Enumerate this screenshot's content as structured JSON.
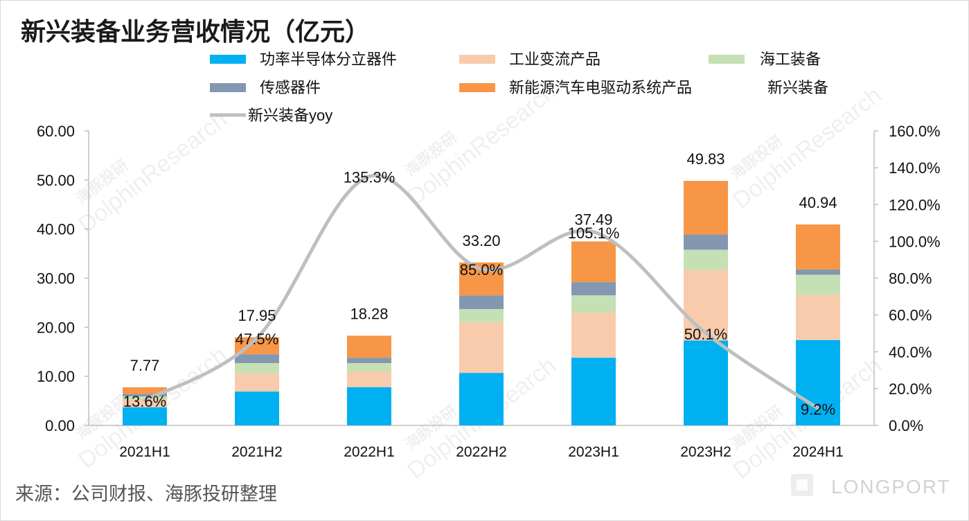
{
  "title": "新兴装备业务营收情况（亿元）",
  "source": "来源：公司财报、海豚投研整理",
  "watermark": {
    "cn": "海豚投研",
    "en": "DolphinResearch",
    "brand": "LONGPORT"
  },
  "colors": {
    "axis": "#BFBFBF",
    "line": "#BFBFBF",
    "frame": "#D9D9D9"
  },
  "chart_data": {
    "type": "bar",
    "stacked": true,
    "legend_position": "top",
    "grid": false,
    "categories": [
      "2021H1",
      "2021H2",
      "2022H1",
      "2022H2",
      "2023H1",
      "2023H2",
      "2024H1"
    ],
    "series": [
      {
        "name": "功率半导体分立器件",
        "color": "#00B0F0",
        "values": [
          3.7,
          6.9,
          7.8,
          10.7,
          13.8,
          17.3,
          17.4
        ]
      },
      {
        "name": "工业变流产品",
        "color": "#F8CBAD",
        "values": [
          1.6,
          3.7,
          3.2,
          10.3,
          9.2,
          14.4,
          9.2
        ]
      },
      {
        "name": "海工装备",
        "color": "#C5E0B4",
        "values": [
          0.6,
          2.1,
          1.7,
          2.7,
          3.5,
          4.1,
          4.1
        ]
      },
      {
        "name": "传感器件",
        "color": "#8497B0",
        "values": [
          0.5,
          1.8,
          1.1,
          2.8,
          2.7,
          3.1,
          1.1
        ]
      },
      {
        "name": "新能源汽车电驱动系统产品",
        "color": "#F79646",
        "values": [
          1.37,
          3.45,
          4.48,
          6.7,
          8.29,
          10.93,
          9.14
        ]
      }
    ],
    "total": {
      "name": "新兴装备",
      "values": [
        7.77,
        17.95,
        18.28,
        33.2,
        37.49,
        49.83,
        40.94
      ],
      "labels": [
        "7.77",
        "17.95",
        "18.28",
        "33.20",
        "37.49",
        "49.83",
        "40.94"
      ]
    },
    "line": {
      "name": "新兴装备yoy",
      "axis": "right",
      "smooth": true,
      "color": "#BFBFBF",
      "values": [
        13.6,
        47.5,
        135.3,
        85.0,
        105.1,
        50.1,
        9.2
      ],
      "labels": [
        "13.6%",
        "47.5%",
        "135.3%",
        "85.0%",
        "105.1%",
        "50.1%",
        "9.2%"
      ]
    },
    "y_left": {
      "range": [
        0,
        60
      ],
      "step": 10,
      "tick_labels": [
        "0.00",
        "10.00",
        "20.00",
        "30.00",
        "40.00",
        "50.00",
        "60.00"
      ]
    },
    "y_right": {
      "range": [
        0,
        160
      ],
      "step": 20,
      "tick_labels": [
        "0.0%",
        "20.0%",
        "40.0%",
        "60.0%",
        "80.0%",
        "100.0%",
        "120.0%",
        "140.0%",
        "160.0%"
      ]
    }
  }
}
